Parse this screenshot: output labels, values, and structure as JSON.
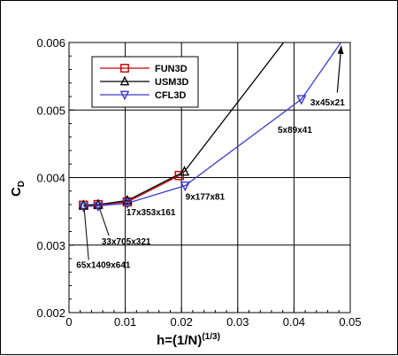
{
  "chart_data": {
    "type": "line",
    "title": "",
    "xlabel": "h=(1/N)",
    "xlabel_superscript": "(1/3)",
    "ylabel": "C",
    "ylabel_subscript": "D",
    "xlim": [
      0,
      0.05
    ],
    "ylim": [
      0.002,
      0.006
    ],
    "x_ticks": [
      0,
      0.01,
      0.02,
      0.03,
      0.04,
      0.05
    ],
    "x_tick_labels": [
      "0",
      "0.01",
      "0.02",
      "0.03",
      "0.04",
      "0.05"
    ],
    "y_ticks": [
      0.002,
      0.003,
      0.004,
      0.005,
      0.006
    ],
    "y_tick_labels": [
      "0.002",
      "0.003",
      "0.004",
      "0.005",
      "0.006"
    ],
    "grid": true,
    "legend_position": "top-left",
    "series": [
      {
        "name": "FUN3D",
        "color": "#c00000",
        "marker": "square",
        "x": [
          0.00258,
          0.00518,
          0.01037,
          0.01962
        ],
        "y": [
          0.00359,
          0.0036,
          0.00364,
          0.00403
        ]
      },
      {
        "name": "USM3D",
        "color": "#000000",
        "marker": "triangle-up",
        "marker_x": [
          0.00258,
          0.00518,
          0.01037,
          0.02053
        ],
        "marker_y": [
          0.00359,
          0.0036,
          0.00366,
          0.00409
        ],
        "x": [
          0.00258,
          0.00518,
          0.01037,
          0.02053,
          0.04
        ],
        "y": [
          0.00359,
          0.0036,
          0.00366,
          0.00409,
          0.0062
        ]
      },
      {
        "name": "CFL3D",
        "color": "#3a3acc",
        "marker": "triangle-down",
        "marker_x": [
          0.00258,
          0.00518,
          0.01037,
          0.02065,
          0.04132
        ],
        "marker_y": [
          0.00357,
          0.00358,
          0.00362,
          0.00388,
          0.00516
        ],
        "x": [
          0.00258,
          0.00518,
          0.01037,
          0.02065,
          0.04132,
          0.05
        ],
        "y": [
          0.00357,
          0.00358,
          0.00362,
          0.00388,
          0.00516,
          0.0062
        ]
      }
    ],
    "annotations": [
      {
        "text": "65x1409x641",
        "x": 0.0013,
        "y": 0.00266
      },
      {
        "text": "33x705x321",
        "x": 0.0058,
        "y": 0.00301
      },
      {
        "text": "17x353x161",
        "x": 0.0102,
        "y": 0.00344
      },
      {
        "text": "9x177x81",
        "x": 0.0207,
        "y": 0.00367
      },
      {
        "text": "5x89x41",
        "x": 0.0371,
        "y": 0.00466
      },
      {
        "text": "3x45x21",
        "x": 0.0429,
        "y": 0.00507
      }
    ],
    "leader_lines": [
      {
        "x1": 0.0027,
        "y1": 0.00354,
        "x2": 0.0035,
        "y2": 0.00278
      },
      {
        "x1": 0.0054,
        "y1": 0.00355,
        "x2": 0.0071,
        "y2": 0.00314
      }
    ],
    "arrow": {
      "x1": 0.0477,
      "y1": 0.00526,
      "x2": 0.0484,
      "y2": 0.00595
    }
  }
}
